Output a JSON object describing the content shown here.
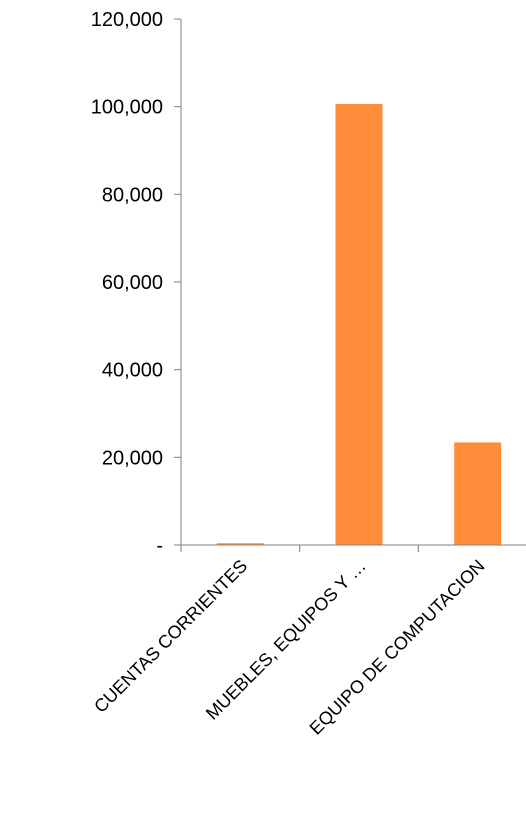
{
  "chart_data": {
    "type": "bar",
    "categories": [
      "CUENTAS CORRIENTES",
      "MUEBLES, EQUIPOS Y …",
      "EQUIPO DE COMPUTACION"
    ],
    "values": [
      400,
      100600,
      23400
    ],
    "title": "",
    "xlabel": "",
    "ylabel": "",
    "ylim": [
      0,
      120000
    ],
    "y_ticks": [
      0,
      20000,
      40000,
      60000,
      80000,
      100000,
      120000
    ],
    "y_tick_labels": [
      "-",
      "20,000",
      "40,000",
      "60,000",
      "80,000",
      "100,000",
      "120,000"
    ],
    "grid": false,
    "legend": "none",
    "bar_color": "#FF8C38",
    "axis_color": "#808080"
  }
}
